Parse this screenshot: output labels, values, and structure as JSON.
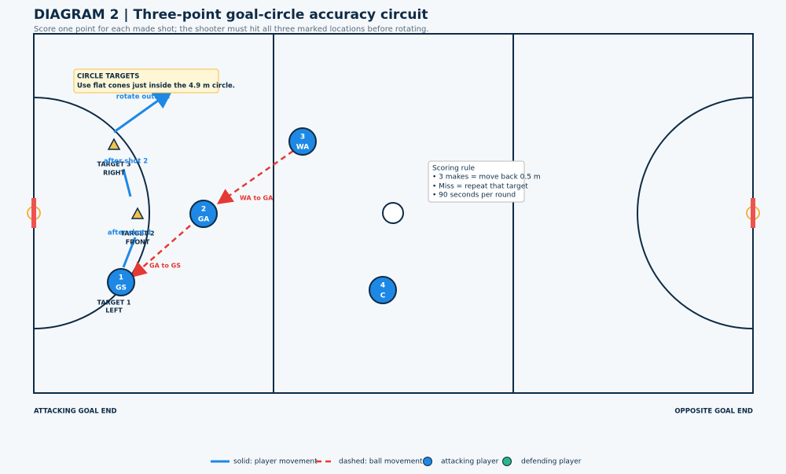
{
  "header": {
    "title": "DIAGRAM 2 | Three-point goal-circle accuracy circuit",
    "subtitle": "Score one point for each made shot; the shooter must hit all three marked locations before rotating."
  },
  "callout": {
    "title": "CIRCLE TARGETS",
    "text": "Use flat cones just inside the 4.9 m circle."
  },
  "movement_labels": [
    "rotate outside",
    "after shot 2",
    "after shot 1"
  ],
  "targets": [
    {
      "name": "TARGET 1",
      "side": "LEFT"
    },
    {
      "name": "TARGET 2",
      "side": "FRONT"
    },
    {
      "name": "TARGET 3",
      "side": "RIGHT"
    }
  ],
  "players": [
    {
      "number": "1",
      "position": "GS"
    },
    {
      "number": "2",
      "position": "GA"
    },
    {
      "number": "3",
      "position": "WA"
    },
    {
      "number": "4",
      "position": "C"
    }
  ],
  "pass_labels": [
    "WA to GA",
    "GA to GS"
  ],
  "scoring_box": {
    "title": "Scoring rule",
    "lines": [
      "• 3 makes = move back 0.5 m",
      "• Miss = repeat that target",
      "• 90 seconds per round"
    ]
  },
  "ends": [
    "ATTACKING GOAL END",
    "OPPOSITE GOAL END"
  ],
  "legend": [
    "solid: player movement",
    "dashed: ball movement",
    "attacking player",
    "defending player"
  ]
}
